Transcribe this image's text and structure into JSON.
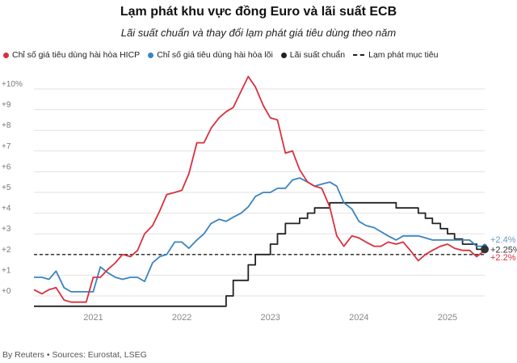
{
  "header": {
    "title": "Lạm phát khu vực đồng Euro và lãi suất ECB",
    "subtitle": "Lãi suất chuẩn và thay đổi lạm phát giá tiêu dùng theo năm"
  },
  "legend": [
    {
      "label": "Chỉ số giá tiêu dùng hài hòa HICP",
      "color": "#d9303e",
      "marker": "dot"
    },
    {
      "label": "Chỉ số giá tiêu dùng hài hòa lõi",
      "color": "#3a84c1",
      "marker": "dot"
    },
    {
      "label": "Lãi suất chuẩn",
      "color": "#222222",
      "marker": "dot"
    },
    {
      "label": "Lạm phát mục tiêu",
      "color": "#222222",
      "marker": "dash"
    }
  ],
  "footer": {
    "source": "By Reuters • Sources: Eurostat, LSEG"
  },
  "chart_data": {
    "type": "line",
    "xlim": [
      2020.33,
      2025.42
    ],
    "ylim": [
      -0.5,
      10.5
    ],
    "yticks": [
      0,
      1,
      2,
      3,
      4,
      5,
      6,
      7,
      8,
      9,
      10
    ],
    "ytick_labels": [
      "+0",
      "+1",
      "+2",
      "+3",
      "+4",
      "+5",
      "+6",
      "+7",
      "+8",
      "+9",
      "+10%"
    ],
    "xticks": [
      2021,
      2022,
      2023,
      2024,
      2025
    ],
    "xtick_labels": [
      "2021",
      "2022",
      "2023",
      "2024",
      "2025"
    ],
    "grid": true,
    "legend_position": "top",
    "target": 2.0,
    "end_labels": [
      {
        "text": "+2.4%",
        "value": 2.4,
        "color": "#6a9bc3"
      },
      {
        "text": "+2.25%",
        "value": 2.25,
        "color": "#333333"
      },
      {
        "text": "+2.2%",
        "value": 2.2,
        "color": "#d9303e"
      }
    ],
    "series": [
      {
        "name": "Chỉ số giá tiêu dùng hài hòa HICP",
        "color": "#d9303e",
        "step": false,
        "x": [
          2020.33,
          2020.42,
          2020.5,
          2020.58,
          2020.67,
          2020.75,
          2020.83,
          2020.92,
          2021.0,
          2021.08,
          2021.17,
          2021.25,
          2021.33,
          2021.42,
          2021.5,
          2021.58,
          2021.67,
          2021.75,
          2021.83,
          2021.92,
          2022.0,
          2022.08,
          2022.17,
          2022.25,
          2022.33,
          2022.42,
          2022.5,
          2022.58,
          2022.67,
          2022.75,
          2022.83,
          2022.92,
          2023.0,
          2023.08,
          2023.17,
          2023.25,
          2023.33,
          2023.42,
          2023.5,
          2023.58,
          2023.67,
          2023.75,
          2023.83,
          2023.92,
          2024.0,
          2024.08,
          2024.17,
          2024.25,
          2024.33,
          2024.42,
          2024.5,
          2024.58,
          2024.67,
          2024.75,
          2024.83,
          2024.92,
          2025.0,
          2025.08,
          2025.17,
          2025.25,
          2025.33,
          2025.42
        ],
        "values": [
          0.3,
          0.1,
          0.3,
          0.4,
          -0.2,
          -0.3,
          -0.3,
          -0.3,
          0.9,
          0.9,
          1.3,
          1.6,
          2.0,
          1.9,
          2.2,
          3.0,
          3.4,
          4.1,
          4.9,
          5.0,
          5.1,
          5.9,
          7.4,
          7.4,
          8.1,
          8.6,
          8.9,
          9.1,
          9.9,
          10.6,
          10.1,
          9.2,
          8.6,
          8.5,
          6.9,
          7.0,
          6.1,
          5.5,
          5.3,
          5.2,
          4.3,
          2.9,
          2.4,
          2.9,
          2.8,
          2.6,
          2.4,
          2.4,
          2.6,
          2.5,
          2.6,
          2.2,
          1.7,
          2.0,
          2.2,
          2.4,
          2.5,
          2.3,
          2.2,
          2.2,
          1.9,
          2.2
        ]
      },
      {
        "name": "Chỉ số giá tiêu dùng hài hòa lõi",
        "color": "#3a84c1",
        "step": false,
        "x": [
          2020.33,
          2020.42,
          2020.5,
          2020.58,
          2020.67,
          2020.75,
          2020.83,
          2020.92,
          2021.0,
          2021.08,
          2021.17,
          2021.25,
          2021.33,
          2021.42,
          2021.5,
          2021.58,
          2021.67,
          2021.75,
          2021.83,
          2021.92,
          2022.0,
          2022.08,
          2022.17,
          2022.25,
          2022.33,
          2022.42,
          2022.5,
          2022.58,
          2022.67,
          2022.75,
          2022.83,
          2022.92,
          2023.0,
          2023.08,
          2023.17,
          2023.25,
          2023.33,
          2023.42,
          2023.5,
          2023.58,
          2023.67,
          2023.75,
          2023.83,
          2023.92,
          2024.0,
          2024.08,
          2024.17,
          2024.25,
          2024.33,
          2024.42,
          2024.5,
          2024.58,
          2024.67,
          2024.75,
          2024.83,
          2024.92,
          2025.0,
          2025.08,
          2025.17,
          2025.25,
          2025.33,
          2025.42
        ],
        "values": [
          0.9,
          0.9,
          0.8,
          1.2,
          0.4,
          0.2,
          0.2,
          0.2,
          0.2,
          1.4,
          1.1,
          0.9,
          0.8,
          0.9,
          0.9,
          0.7,
          1.6,
          1.9,
          2.0,
          2.6,
          2.6,
          2.3,
          2.7,
          3.0,
          3.5,
          3.7,
          3.6,
          3.8,
          4.0,
          4.3,
          4.8,
          5.0,
          5.0,
          5.2,
          5.2,
          5.6,
          5.7,
          5.5,
          5.3,
          5.4,
          5.5,
          5.3,
          4.5,
          4.2,
          3.6,
          3.4,
          3.3,
          3.1,
          2.9,
          2.7,
          2.9,
          2.9,
          2.9,
          2.8,
          2.7,
          2.7,
          2.7,
          2.7,
          2.7,
          2.7,
          2.4,
          2.4
        ]
      },
      {
        "name": "Lãi suất chuẩn",
        "color": "#222222",
        "step": true,
        "x": [
          2020.33,
          2022.5,
          2022.58,
          2022.75,
          2022.83,
          2023.0,
          2023.08,
          2023.17,
          2023.33,
          2023.42,
          2023.5,
          2023.67,
          2024.42,
          2024.67,
          2024.75,
          2024.83,
          2024.92,
          2025.0,
          2025.08,
          2025.17,
          2025.33,
          2025.42
        ],
        "values": [
          -0.5,
          0.0,
          0.75,
          1.5,
          2.0,
          2.5,
          3.0,
          3.5,
          3.75,
          4.0,
          4.25,
          4.5,
          4.25,
          4.0,
          3.75,
          3.5,
          3.25,
          3.0,
          2.75,
          2.5,
          2.25,
          2.25
        ]
      }
    ]
  }
}
